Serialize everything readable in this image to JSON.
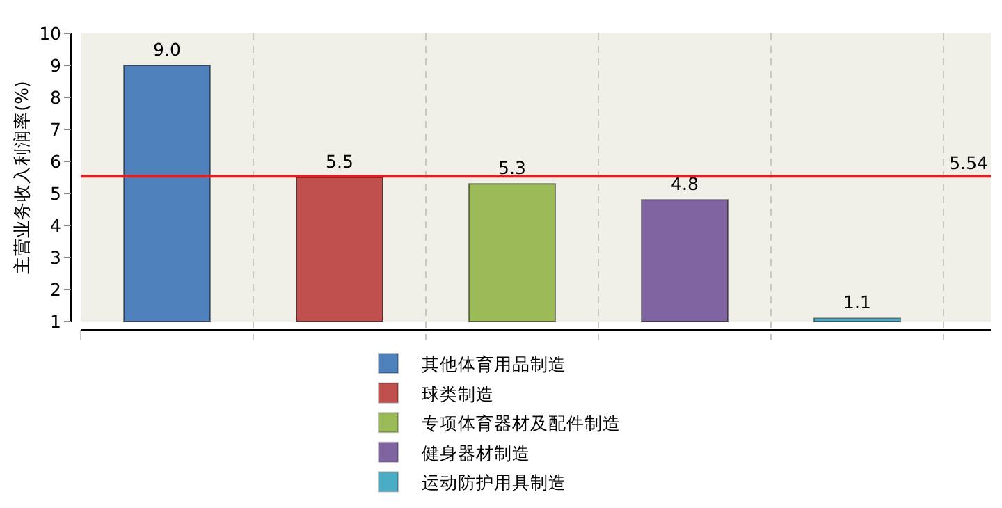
{
  "chart_data": {
    "type": "bar",
    "ylabel": "主营业务收入利润率(%)",
    "categories": [
      null,
      null,
      null,
      null,
      null
    ],
    "series": [
      {
        "name": "其他体育用品制造",
        "color": "#4f81bd",
        "values": [
          9.0,
          null,
          null,
          null,
          null
        ],
        "value_labels": [
          "9.0",
          null,
          null,
          null,
          null
        ]
      },
      {
        "name": "球类制造",
        "color": "#c0504d",
        "values": [
          null,
          5.5,
          null,
          null,
          null
        ],
        "value_labels": [
          null,
          "5.5",
          null,
          null,
          null
        ]
      },
      {
        "name": "专项体育器材及配件制造",
        "color": "#9bbb59",
        "values": [
          null,
          null,
          5.3,
          null,
          null
        ],
        "value_labels": [
          null,
          null,
          "5.3",
          null,
          null
        ]
      },
      {
        "name": "健身器材制造",
        "color": "#8064a2",
        "values": [
          null,
          null,
          null,
          4.8,
          null
        ],
        "value_labels": [
          null,
          null,
          null,
          "4.8",
          null
        ]
      },
      {
        "name": "运动防护用具制造",
        "color": "#4bacc6",
        "values": [
          null,
          null,
          null,
          null,
          1.1
        ],
        "value_labels": [
          null,
          null,
          null,
          null,
          "1.1"
        ]
      }
    ],
    "ylim": [
      1,
      10
    ],
    "yticks": [
      1,
      2,
      3,
      4,
      5,
      6,
      7,
      8,
      9,
      10
    ],
    "tick_labels": "y",
    "grid": "x",
    "legend": "bottom",
    "ref_lines": [
      {
        "axis": "y",
        "value": 5.54,
        "label": "5.54",
        "color": "#e02020"
      }
    ]
  }
}
